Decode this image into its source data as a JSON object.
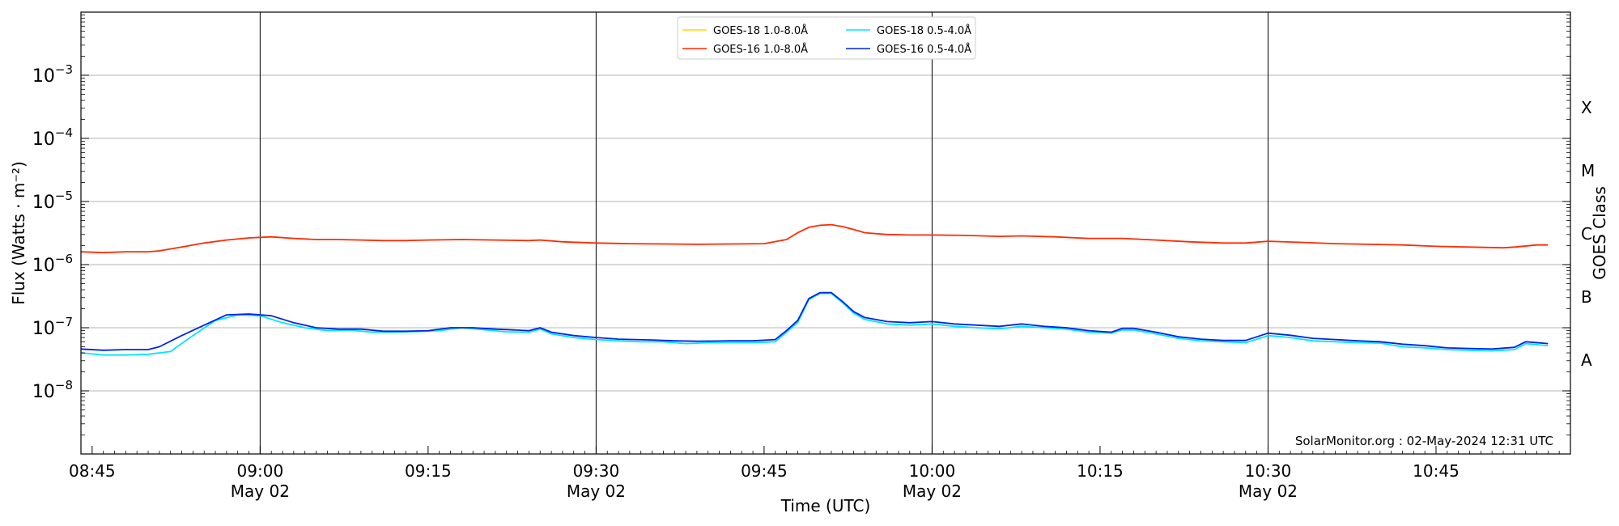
{
  "chart_data": {
    "type": "line",
    "xlabel": "Time (UTC)",
    "ylabel": "Flux (Watts · m⁻²)",
    "y2label": "GOES Class",
    "yscale": "log",
    "ylim": [
      1e-09,
      0.01
    ],
    "xlim": [
      "08:44",
      "10:57"
    ],
    "grid": "horizontal",
    "legend_position": "top-center",
    "watermark": "SolarMonitor.org : 02-May-2024 12:31 UTC",
    "y_ticks": [
      {
        "exp": -8,
        "base": "10",
        "power": "−8"
      },
      {
        "exp": -7,
        "base": "10",
        "power": "−7"
      },
      {
        "exp": -6,
        "base": "10",
        "power": "−6"
      },
      {
        "exp": -5,
        "base": "10",
        "power": "−5"
      },
      {
        "exp": -4,
        "base": "10",
        "power": "−4"
      },
      {
        "exp": -3,
        "base": "10",
        "power": "−3"
      }
    ],
    "x_ticks": [
      {
        "t": "08:45",
        "label": "08:45",
        "sub": ""
      },
      {
        "t": "09:00",
        "label": "09:00",
        "sub": "May 02"
      },
      {
        "t": "09:15",
        "label": "09:15",
        "sub": ""
      },
      {
        "t": "09:30",
        "label": "09:30",
        "sub": "May 02"
      },
      {
        "t": "09:45",
        "label": "09:45",
        "sub": ""
      },
      {
        "t": "10:00",
        "label": "10:00",
        "sub": "May 02"
      },
      {
        "t": "10:15",
        "label": "10:15",
        "sub": ""
      },
      {
        "t": "10:30",
        "label": "10:30",
        "sub": "May 02"
      },
      {
        "t": "10:45",
        "label": "10:45",
        "sub": ""
      }
    ],
    "vlines": [
      "09:00",
      "09:30",
      "10:00",
      "10:30"
    ],
    "goes_classes": [
      {
        "label": "A",
        "exp": -7.5
      },
      {
        "label": "B",
        "exp": -6.5
      },
      {
        "label": "C",
        "exp": -5.5
      },
      {
        "label": "M",
        "exp": -4.5
      },
      {
        "label": "X",
        "exp": -3.5
      }
    ],
    "series": [
      {
        "name": "GOES-18 1.0-8.0Å",
        "color": "#ffd700",
        "points": []
      },
      {
        "name": "GOES-18 0.5-4.0Å",
        "color": "#00e5ff",
        "points": [
          [
            "08:44",
            4e-08
          ],
          [
            "08:46",
            3.7e-08
          ],
          [
            "08:48",
            3.7e-08
          ],
          [
            "08:50",
            3.8e-08
          ],
          [
            "08:52",
            4.2e-08
          ],
          [
            "08:54",
            7.5e-08
          ],
          [
            "08:56",
            1.3e-07
          ],
          [
            "08:58",
            1.6e-07
          ],
          [
            "09:00",
            1.55e-07
          ],
          [
            "09:02",
            1.2e-07
          ],
          [
            "09:04",
            1e-07
          ],
          [
            "09:06",
            9e-08
          ],
          [
            "09:08",
            9.2e-08
          ],
          [
            "09:10",
            8.5e-08
          ],
          [
            "09:12",
            8.5e-08
          ],
          [
            "09:14",
            8.7e-08
          ],
          [
            "09:16",
            9e-08
          ],
          [
            "09:18",
            1e-07
          ],
          [
            "09:20",
            9.3e-08
          ],
          [
            "09:22",
            8.6e-08
          ],
          [
            "09:24",
            8.5e-08
          ],
          [
            "09:25",
            9.5e-08
          ],
          [
            "09:26",
            8e-08
          ],
          [
            "09:28",
            7e-08
          ],
          [
            "09:30",
            6.5e-08
          ],
          [
            "09:32",
            6.2e-08
          ],
          [
            "09:34",
            6e-08
          ],
          [
            "09:36",
            6e-08
          ],
          [
            "09:38",
            5.6e-08
          ],
          [
            "09:40",
            5.8e-08
          ],
          [
            "09:42",
            5.8e-08
          ],
          [
            "09:44",
            5.8e-08
          ],
          [
            "09:46",
            6e-08
          ],
          [
            "09:47",
            8.5e-08
          ],
          [
            "09:48",
            1.2e-07
          ],
          [
            "09:49",
            2.8e-07
          ],
          [
            "09:50",
            3.5e-07
          ],
          [
            "09:51",
            3.5e-07
          ],
          [
            "09:52",
            2.5e-07
          ],
          [
            "09:53",
            1.7e-07
          ],
          [
            "09:54",
            1.35e-07
          ],
          [
            "09:56",
            1.15e-07
          ],
          [
            "09:58",
            1.1e-07
          ],
          [
            "10:00",
            1.15e-07
          ],
          [
            "10:02",
            1.05e-07
          ],
          [
            "10:04",
            1e-07
          ],
          [
            "10:06",
            9.6e-08
          ],
          [
            "10:08",
            1.05e-07
          ],
          [
            "10:10",
            1e-07
          ],
          [
            "10:12",
            9.5e-08
          ],
          [
            "10:14",
            8.5e-08
          ],
          [
            "10:16",
            8.2e-08
          ],
          [
            "10:17",
            9.2e-08
          ],
          [
            "10:18",
            9.2e-08
          ],
          [
            "10:20",
            8e-08
          ],
          [
            "10:22",
            6.8e-08
          ],
          [
            "10:24",
            6.2e-08
          ],
          [
            "10:26",
            6e-08
          ],
          [
            "10:28",
            5.8e-08
          ],
          [
            "10:30",
            7.5e-08
          ],
          [
            "10:32",
            7e-08
          ],
          [
            "10:34",
            6.2e-08
          ],
          [
            "10:36",
            6e-08
          ],
          [
            "10:38",
            5.8e-08
          ],
          [
            "10:40",
            5.7e-08
          ],
          [
            "10:42",
            5e-08
          ],
          [
            "10:44",
            4.8e-08
          ],
          [
            "10:46",
            4.5e-08
          ],
          [
            "10:48",
            4.4e-08
          ],
          [
            "10:50",
            4.3e-08
          ],
          [
            "10:52",
            4.5e-08
          ],
          [
            "10:53",
            5.6e-08
          ],
          [
            "10:55",
            5.2e-08
          ]
        ]
      },
      {
        "name": "GOES-16 1.0-8.0Å",
        "color": "#ff2a00",
        "points": [
          [
            "08:44",
            1.6e-06
          ],
          [
            "08:46",
            1.55e-06
          ],
          [
            "08:48",
            1.6e-06
          ],
          [
            "08:50",
            1.6e-06
          ],
          [
            "08:51",
            1.65e-06
          ],
          [
            "08:53",
            1.9e-06
          ],
          [
            "08:55",
            2.2e-06
          ],
          [
            "08:57",
            2.45e-06
          ],
          [
            "08:59",
            2.65e-06
          ],
          [
            "09:01",
            2.75e-06
          ],
          [
            "09:03",
            2.6e-06
          ],
          [
            "09:05",
            2.5e-06
          ],
          [
            "09:07",
            2.5e-06
          ],
          [
            "09:09",
            2.45e-06
          ],
          [
            "09:11",
            2.4e-06
          ],
          [
            "09:13",
            2.4e-06
          ],
          [
            "09:15",
            2.45e-06
          ],
          [
            "09:18",
            2.5e-06
          ],
          [
            "09:21",
            2.45e-06
          ],
          [
            "09:24",
            2.4e-06
          ],
          [
            "09:25",
            2.45e-06
          ],
          [
            "09:27",
            2.3e-06
          ],
          [
            "09:30",
            2.2e-06
          ],
          [
            "09:33",
            2.15e-06
          ],
          [
            "09:36",
            2.12e-06
          ],
          [
            "09:39",
            2.1e-06
          ],
          [
            "09:42",
            2.12e-06
          ],
          [
            "09:45",
            2.15e-06
          ],
          [
            "09:47",
            2.5e-06
          ],
          [
            "09:48",
            3.2e-06
          ],
          [
            "09:49",
            3.9e-06
          ],
          [
            "09:50",
            4.2e-06
          ],
          [
            "09:51",
            4.3e-06
          ],
          [
            "09:52",
            4e-06
          ],
          [
            "09:53",
            3.6e-06
          ],
          [
            "09:54",
            3.2e-06
          ],
          [
            "09:56",
            3e-06
          ],
          [
            "09:58",
            2.95e-06
          ],
          [
            "10:00",
            2.95e-06
          ],
          [
            "10:03",
            2.9e-06
          ],
          [
            "10:06",
            2.8e-06
          ],
          [
            "10:08",
            2.85e-06
          ],
          [
            "10:11",
            2.75e-06
          ],
          [
            "10:14",
            2.6e-06
          ],
          [
            "10:17",
            2.6e-06
          ],
          [
            "10:20",
            2.45e-06
          ],
          [
            "10:23",
            2.3e-06
          ],
          [
            "10:26",
            2.2e-06
          ],
          [
            "10:28",
            2.2e-06
          ],
          [
            "10:30",
            2.35e-06
          ],
          [
            "10:33",
            2.25e-06
          ],
          [
            "10:36",
            2.15e-06
          ],
          [
            "10:39",
            2.1e-06
          ],
          [
            "10:42",
            2.05e-06
          ],
          [
            "10:45",
            1.95e-06
          ],
          [
            "10:48",
            1.9e-06
          ],
          [
            "10:51",
            1.85e-06
          ],
          [
            "10:52",
            1.9e-06
          ],
          [
            "10:54",
            2.05e-06
          ],
          [
            "10:55",
            2.05e-06
          ]
        ]
      },
      {
        "name": "GOES-16 0.5-4.0Å",
        "color": "#0022ee",
        "points": [
          [
            "08:44",
            4.6e-08
          ],
          [
            "08:46",
            4.4e-08
          ],
          [
            "08:48",
            4.5e-08
          ],
          [
            "08:50",
            4.5e-08
          ],
          [
            "08:51",
            5e-08
          ],
          [
            "08:53",
            7.5e-08
          ],
          [
            "08:55",
            1.1e-07
          ],
          [
            "08:57",
            1.6e-07
          ],
          [
            "08:59",
            1.65e-07
          ],
          [
            "09:01",
            1.55e-07
          ],
          [
            "09:03",
            1.2e-07
          ],
          [
            "09:05",
            1e-07
          ],
          [
            "09:07",
            9.5e-08
          ],
          [
            "09:09",
            9.5e-08
          ],
          [
            "09:11",
            8.8e-08
          ],
          [
            "09:13",
            8.8e-08
          ],
          [
            "09:15",
            9e-08
          ],
          [
            "09:17",
            1e-07
          ],
          [
            "09:19",
            1e-07
          ],
          [
            "09:21",
            9.5e-08
          ],
          [
            "09:24",
            9e-08
          ],
          [
            "09:25",
            1e-07
          ],
          [
            "09:26",
            8.5e-08
          ],
          [
            "09:28",
            7.5e-08
          ],
          [
            "09:30",
            7e-08
          ],
          [
            "09:32",
            6.6e-08
          ],
          [
            "09:35",
            6.4e-08
          ],
          [
            "09:37",
            6.2e-08
          ],
          [
            "09:39",
            6.1e-08
          ],
          [
            "09:42",
            6.2e-08
          ],
          [
            "09:44",
            6.2e-08
          ],
          [
            "09:46",
            6.5e-08
          ],
          [
            "09:47",
            9e-08
          ],
          [
            "09:48",
            1.3e-07
          ],
          [
            "09:49",
            2.9e-07
          ],
          [
            "09:50",
            3.6e-07
          ],
          [
            "09:51",
            3.6e-07
          ],
          [
            "09:52",
            2.6e-07
          ],
          [
            "09:53",
            1.8e-07
          ],
          [
            "09:54",
            1.45e-07
          ],
          [
            "09:56",
            1.25e-07
          ],
          [
            "09:58",
            1.2e-07
          ],
          [
            "10:00",
            1.25e-07
          ],
          [
            "10:02",
            1.15e-07
          ],
          [
            "10:04",
            1.1e-07
          ],
          [
            "10:06",
            1.05e-07
          ],
          [
            "10:08",
            1.15e-07
          ],
          [
            "10:10",
            1.05e-07
          ],
          [
            "10:12",
            1e-07
          ],
          [
            "10:14",
            9e-08
          ],
          [
            "10:16",
            8.5e-08
          ],
          [
            "10:17",
            9.8e-08
          ],
          [
            "10:18",
            9.8e-08
          ],
          [
            "10:20",
            8.5e-08
          ],
          [
            "10:22",
            7.2e-08
          ],
          [
            "10:24",
            6.6e-08
          ],
          [
            "10:26",
            6.3e-08
          ],
          [
            "10:28",
            6.3e-08
          ],
          [
            "10:30",
            8.2e-08
          ],
          [
            "10:32",
            7.6e-08
          ],
          [
            "10:34",
            6.8e-08
          ],
          [
            "10:36",
            6.5e-08
          ],
          [
            "10:38",
            6.2e-08
          ],
          [
            "10:40",
            6e-08
          ],
          [
            "10:42",
            5.5e-08
          ],
          [
            "10:44",
            5.2e-08
          ],
          [
            "10:46",
            4.8e-08
          ],
          [
            "10:48",
            4.7e-08
          ],
          [
            "10:50",
            4.6e-08
          ],
          [
            "10:52",
            4.9e-08
          ],
          [
            "10:53",
            6e-08
          ],
          [
            "10:55",
            5.6e-08
          ]
        ]
      }
    ]
  }
}
